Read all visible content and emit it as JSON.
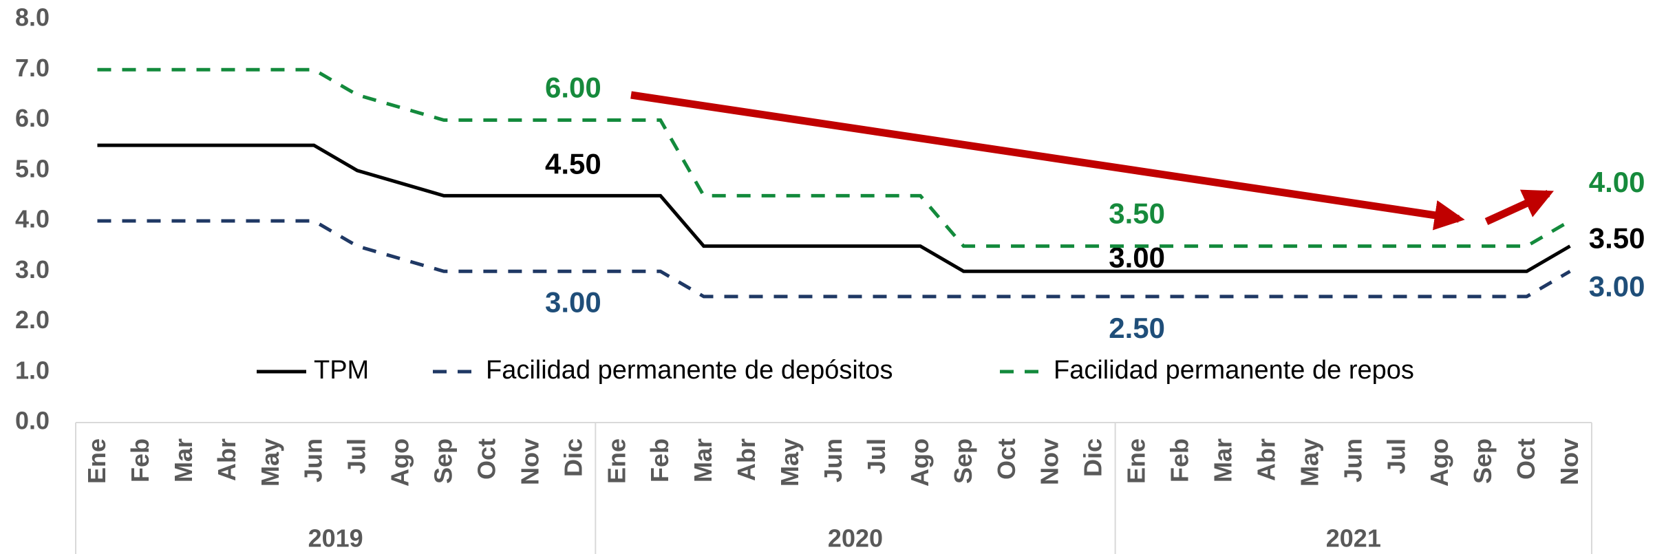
{
  "chart_data": {
    "type": "line",
    "categories": [
      "Ene",
      "Feb",
      "Mar",
      "Abr",
      "May",
      "Jun",
      "Jul",
      "Ago",
      "Sep",
      "Oct",
      "Nov",
      "Dic",
      "Ene",
      "Feb",
      "Mar",
      "Abr",
      "May",
      "Jun",
      "Jul",
      "Ago",
      "Sep",
      "Oct",
      "Nov",
      "Dic",
      "Ene",
      "Feb",
      "Mar",
      "Abr",
      "May",
      "Jun",
      "Jul",
      "Ago",
      "Sep",
      "Oct",
      "Nov"
    ],
    "groups": [
      "2019",
      "2020",
      "2021"
    ],
    "ylim": [
      0,
      8
    ],
    "yticks": [
      {
        "value": 0,
        "label": "0.0"
      },
      {
        "value": 1,
        "label": "1.0"
      },
      {
        "value": 2,
        "label": "2.0"
      },
      {
        "value": 3,
        "label": "3.0"
      },
      {
        "value": 4,
        "label": "4.0"
      },
      {
        "value": 5,
        "label": "5.0"
      },
      {
        "value": 6,
        "label": "6.0"
      },
      {
        "value": 7,
        "label": "7.0"
      },
      {
        "value": 8,
        "label": "8.0"
      }
    ],
    "series": [
      {
        "name": "TPM",
        "color": "#000000",
        "dash": false,
        "values": [
          5.5,
          5.5,
          5.5,
          5.5,
          5.5,
          5.5,
          5.0,
          4.75,
          4.5,
          4.5,
          4.5,
          4.5,
          4.5,
          4.5,
          3.5,
          3.5,
          3.5,
          3.5,
          3.5,
          3.5,
          3.0,
          3.0,
          3.0,
          3.0,
          3.0,
          3.0,
          3.0,
          3.0,
          3.0,
          3.0,
          3.0,
          3.0,
          3.0,
          3.0,
          3.5
        ],
        "value_labels": [
          null,
          null,
          null,
          null,
          null,
          null,
          null,
          null,
          null,
          null,
          "4.50",
          null,
          null,
          null,
          null,
          null,
          null,
          null,
          null,
          null,
          null,
          null,
          null,
          "3.00",
          null,
          null,
          null,
          null,
          null,
          null,
          null,
          null,
          null,
          null,
          "3.50"
        ],
        "label_color": "#000000"
      },
      {
        "name": "Facilidad permanente de depósitos",
        "color": "#1f3864",
        "dash": true,
        "values": [
          4,
          4,
          4,
          4,
          4,
          4,
          3.5,
          3.25,
          3,
          3,
          3,
          3,
          3,
          3,
          2.5,
          2.5,
          2.5,
          2.5,
          2.5,
          2.5,
          2.5,
          2.5,
          2.5,
          2.5,
          2.5,
          2.5,
          2.5,
          2.5,
          2.5,
          2.5,
          2.5,
          2.5,
          2.5,
          2.5,
          3.0
        ],
        "value_labels": [
          null,
          null,
          null,
          null,
          null,
          null,
          null,
          null,
          null,
          null,
          "3.00",
          null,
          null,
          null,
          null,
          null,
          null,
          null,
          null,
          null,
          null,
          null,
          null,
          "2.50",
          null,
          null,
          null,
          null,
          null,
          null,
          null,
          null,
          null,
          null,
          "3.00"
        ],
        "label_color": "#1f4e79"
      },
      {
        "name": "Facilidad permanente de repos",
        "color": "#138a3c",
        "dash": true,
        "values": [
          7,
          7,
          7,
          7,
          7,
          7,
          6.5,
          6.25,
          6,
          6,
          6,
          6,
          6,
          6,
          4.5,
          4.5,
          4.5,
          4.5,
          4.5,
          4.5,
          3.5,
          3.5,
          3.5,
          3.5,
          3.5,
          3.5,
          3.5,
          3.5,
          3.5,
          3.5,
          3.5,
          3.5,
          3.5,
          3.5,
          4.0
        ],
        "value_labels": [
          null,
          null,
          null,
          null,
          null,
          null,
          null,
          null,
          null,
          null,
          "6.00",
          null,
          null,
          null,
          null,
          null,
          null,
          null,
          null,
          null,
          null,
          null,
          null,
          "3.50",
          null,
          null,
          null,
          null,
          null,
          null,
          null,
          null,
          null,
          null,
          "4.00"
        ],
        "label_color": "#168a3c"
      }
    ]
  }
}
